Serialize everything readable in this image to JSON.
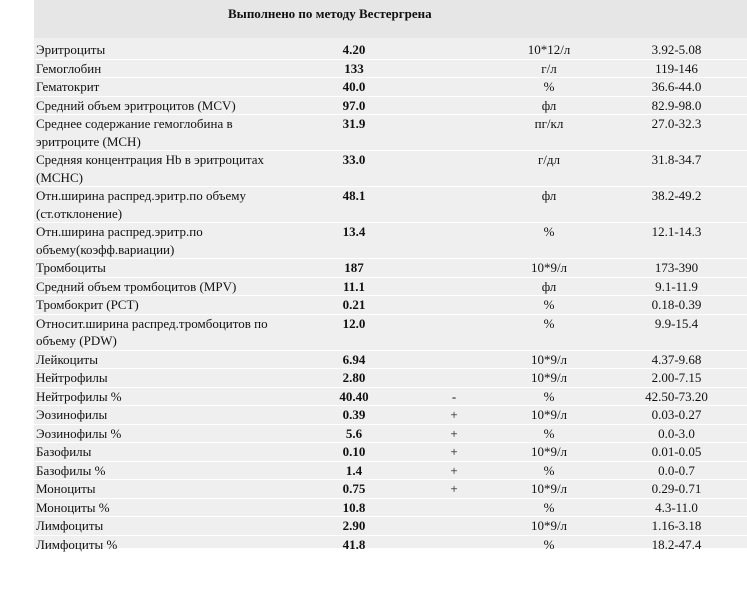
{
  "header": {
    "title": "Выполнено по методу Вестергрена"
  },
  "rows": [
    {
      "name": "Эритроциты",
      "value": "4.20",
      "flag": "",
      "unit": "10*12/л",
      "ref": "3.92-5.08"
    },
    {
      "name": "Гемоглобин",
      "value": "133",
      "flag": "",
      "unit": "г/л",
      "ref": "119-146"
    },
    {
      "name": "Гематокрит",
      "value": "40.0",
      "flag": "",
      "unit": "%",
      "ref": "36.6-44.0"
    },
    {
      "name": "Средний объем эритроцитов (MCV)",
      "value": "97.0",
      "flag": "",
      "unit": "фл",
      "ref": "82.9-98.0"
    },
    {
      "name": "Среднее содержание гемоглобина в эритроците (МСН)",
      "value": "31.9",
      "flag": "",
      "unit": "пг/кл",
      "ref": "27.0-32.3"
    },
    {
      "name": "Средняя концентрация Hb в эритроцитах (МСНС)",
      "value": "33.0",
      "flag": "",
      "unit": "г/дл",
      "ref": "31.8-34.7"
    },
    {
      "name": "Отн.ширина распред.эритр.по объему (ст.отклонение)",
      "value": "48.1",
      "flag": "",
      "unit": "фл",
      "ref": "38.2-49.2"
    },
    {
      "name": "Отн.ширина распред.эритр.по объему(коэфф.вариации)",
      "value": "13.4",
      "flag": "",
      "unit": "%",
      "ref": "12.1-14.3"
    },
    {
      "name": "Тромбоциты",
      "value": "187",
      "flag": "",
      "unit": "10*9/л",
      "ref": "173-390"
    },
    {
      "name": "Средний объем тромбоцитов (MPV)",
      "value": "11.1",
      "flag": "",
      "unit": "фл",
      "ref": "9.1-11.9"
    },
    {
      "name": "Тромбокрит (PCT)",
      "value": "0.21",
      "flag": "",
      "unit": "%",
      "ref": "0.18-0.39"
    },
    {
      "name": "Относит.ширина распред.тромбоцитов по объему (PDW)",
      "value": "12.0",
      "flag": "",
      "unit": "%",
      "ref": "9.9-15.4"
    },
    {
      "name": "Лейкоциты",
      "value": "6.94",
      "flag": "",
      "unit": "10*9/л",
      "ref": "4.37-9.68"
    },
    {
      "name": "Нейтрофилы",
      "value": "2.80",
      "flag": "",
      "unit": "10*9/л",
      "ref": "2.00-7.15"
    },
    {
      "name": "Нейтрофилы %",
      "value": "40.40",
      "flag": "-",
      "unit": "%",
      "ref": "42.50-73.20"
    },
    {
      "name": "Эозинофилы",
      "value": "0.39",
      "flag": "+",
      "unit": "10*9/л",
      "ref": "0.03-0.27"
    },
    {
      "name": "Эозинофилы %",
      "value": "5.6",
      "flag": "+",
      "unit": "%",
      "ref": "0.0-3.0"
    },
    {
      "name": "Базофилы",
      "value": "0.10",
      "flag": "+",
      "unit": "10*9/л",
      "ref": "0.01-0.05"
    },
    {
      "name": "Базофилы %",
      "value": "1.4",
      "flag": "+",
      "unit": "%",
      "ref": "0.0-0.7"
    },
    {
      "name": "Моноциты",
      "value": "0.75",
      "flag": "+",
      "unit": "10*9/л",
      "ref": "0.29-0.71"
    },
    {
      "name": "Моноциты %",
      "value": "10.8",
      "flag": "",
      "unit": "%",
      "ref": "4.3-11.0"
    },
    {
      "name": "Лимфоциты",
      "value": "2.90",
      "flag": "",
      "unit": "10*9/л",
      "ref": "1.16-3.18"
    },
    {
      "name": "Лимфоциты %",
      "value": "41.8",
      "flag": "",
      "unit": "%",
      "ref": "18.2-47.4"
    }
  ]
}
